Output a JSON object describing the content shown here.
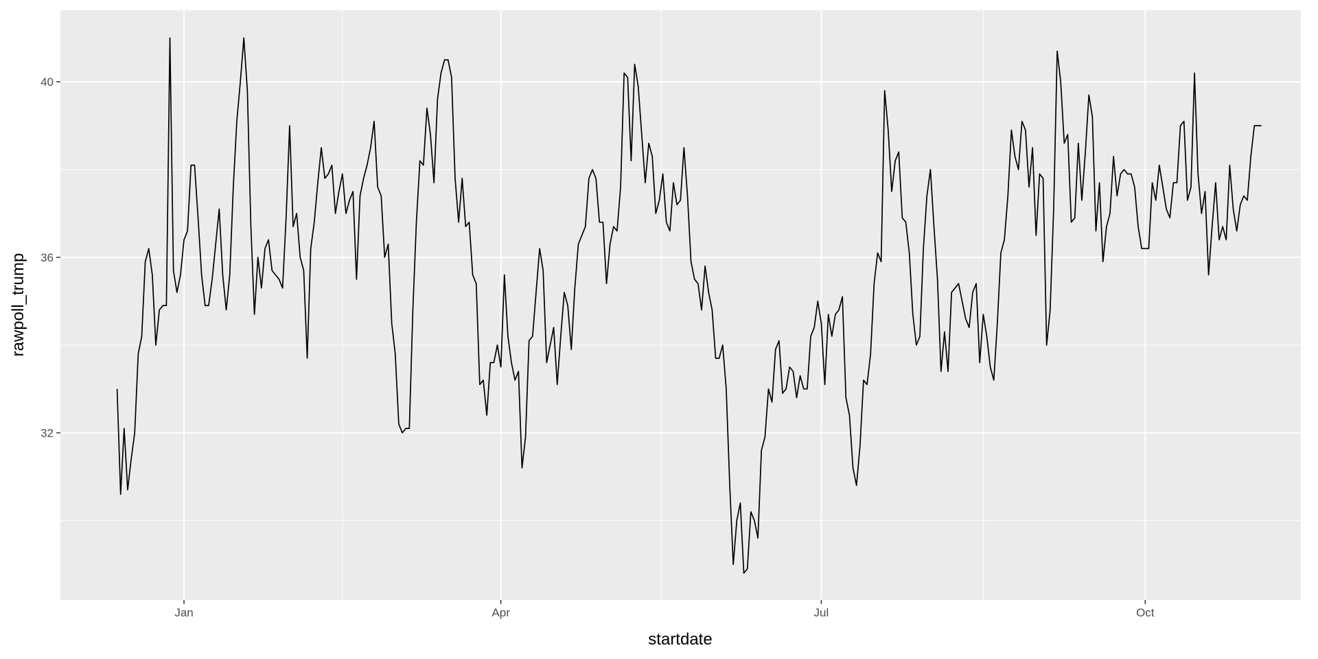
{
  "chart_data": {
    "type": "line",
    "x_label": "startdate",
    "y_label": "rawpoll_trump",
    "color": "#000000",
    "grid": true,
    "x": [
      -19,
      -18,
      -17,
      -16,
      -15,
      -14,
      -13,
      -12,
      -11,
      -10,
      -9,
      -8,
      -7,
      -6,
      -5,
      -4,
      -3,
      -2,
      -1,
      0,
      1,
      2,
      3,
      4,
      5,
      6,
      7,
      8,
      9,
      10,
      11,
      12,
      13,
      14,
      15,
      16,
      17,
      18,
      19,
      20,
      21,
      22,
      23,
      24,
      25,
      26,
      27,
      28,
      29,
      30,
      31,
      32,
      33,
      34,
      35,
      36,
      37,
      38,
      39,
      40,
      41,
      42,
      43,
      44,
      45,
      46,
      47,
      48,
      49,
      50,
      51,
      52,
      53,
      54,
      55,
      56,
      57,
      58,
      59,
      60,
      61,
      62,
      63,
      64,
      65,
      66,
      67,
      68,
      69,
      70,
      71,
      72,
      73,
      74,
      75,
      76,
      77,
      78,
      79,
      80,
      81,
      82,
      83,
      84,
      85,
      86,
      87,
      88,
      89,
      90,
      91,
      92,
      93,
      94,
      95,
      96,
      97,
      98,
      99,
      100,
      101,
      102,
      103,
      104,
      105,
      106,
      107,
      108,
      109,
      110,
      111,
      112,
      113,
      114,
      115,
      116,
      117,
      118,
      119,
      120,
      121,
      122,
      123,
      124,
      125,
      126,
      127,
      128,
      129,
      130,
      131,
      132,
      133,
      134,
      135,
      136,
      137,
      138,
      139,
      140,
      141,
      142,
      143,
      144,
      145,
      146,
      147,
      148,
      149,
      150,
      151,
      152,
      153,
      154,
      155,
      156,
      157,
      158,
      159,
      160,
      161,
      162,
      163,
      164,
      165,
      166,
      167,
      168,
      169,
      170,
      171,
      172,
      173,
      174,
      175,
      176,
      177,
      178,
      179,
      180,
      181,
      182,
      183,
      184,
      185,
      186,
      187,
      188,
      189,
      190,
      191,
      192,
      193,
      194,
      195,
      196,
      197,
      198,
      199,
      200,
      201,
      202,
      203,
      204,
      205,
      206,
      207,
      208,
      209,
      210,
      211,
      212,
      213,
      214,
      215,
      216,
      217,
      218,
      219,
      220,
      221,
      222,
      223,
      224,
      225,
      226,
      227,
      228,
      229,
      230,
      231,
      232,
      233,
      234,
      235,
      236,
      237,
      238,
      239,
      240,
      241,
      242,
      243,
      244,
      245,
      246,
      247,
      248,
      249,
      250,
      251,
      252,
      253,
      254,
      255,
      256,
      257,
      258,
      259,
      260,
      261,
      262,
      263,
      264,
      265,
      266,
      267,
      268,
      269,
      270,
      271,
      272,
      273,
      274,
      275,
      276,
      277,
      278,
      279,
      280,
      281,
      282,
      283,
      284,
      285,
      286,
      287,
      288,
      289,
      290,
      291,
      292,
      293,
      294,
      295,
      296,
      297,
      298,
      299,
      300,
      301,
      302,
      303,
      304,
      305,
      306
    ],
    "values": [
      33.0,
      30.6,
      32.1,
      30.7,
      31.4,
      32.0,
      33.8,
      34.2,
      35.9,
      36.2,
      35.6,
      34.0,
      34.8,
      34.9,
      34.9,
      41.0,
      35.7,
      35.2,
      35.6,
      36.4,
      36.6,
      38.1,
      38.1,
      36.9,
      35.6,
      34.9,
      34.9,
      35.5,
      36.3,
      37.1,
      35.6,
      34.8,
      35.6,
      37.6,
      39.1,
      40.0,
      41.0,
      39.8,
      36.7,
      34.7,
      36.0,
      35.3,
      36.2,
      36.4,
      35.7,
      35.6,
      35.5,
      35.3,
      36.9,
      39.0,
      36.7,
      37.0,
      36.0,
      35.7,
      33.7,
      36.2,
      36.8,
      37.7,
      38.5,
      37.8,
      37.9,
      38.1,
      37.0,
      37.5,
      37.9,
      37.0,
      37.3,
      37.5,
      35.5,
      37.4,
      37.8,
      38.1,
      38.5,
      39.1,
      37.6,
      37.4,
      36.0,
      36.3,
      34.5,
      33.8,
      32.2,
      32.0,
      32.1,
      32.1,
      34.8,
      36.8,
      38.2,
      38.1,
      39.4,
      38.8,
      37.7,
      39.6,
      40.2,
      40.5,
      40.5,
      40.1,
      37.8,
      36.8,
      37.8,
      36.7,
      36.8,
      35.6,
      35.4,
      33.1,
      33.2,
      32.4,
      33.6,
      33.6,
      34.0,
      33.5,
      35.6,
      34.2,
      33.6,
      33.2,
      33.4,
      31.2,
      31.9,
      34.1,
      34.2,
      35.2,
      36.2,
      35.7,
      33.6,
      34.0,
      34.4,
      33.1,
      34.2,
      35.2,
      34.9,
      33.9,
      35.3,
      36.3,
      36.5,
      36.7,
      37.8,
      38.0,
      37.8,
      36.8,
      36.8,
      35.4,
      36.3,
      36.7,
      36.6,
      37.6,
      40.2,
      40.1,
      38.2,
      40.4,
      39.9,
      38.8,
      37.7,
      38.6,
      38.3,
      37.0,
      37.3,
      37.9,
      36.8,
      36.6,
      37.7,
      37.2,
      37.3,
      38.5,
      37.4,
      35.9,
      35.5,
      35.4,
      34.8,
      35.8,
      35.2,
      34.8,
      33.7,
      33.7,
      34.0,
      33.0,
      30.8,
      29.0,
      30.0,
      30.4,
      28.8,
      28.9,
      30.2,
      30.0,
      29.6,
      31.6,
      31.9,
      33.0,
      32.7,
      33.9,
      34.1,
      32.9,
      33.0,
      33.5,
      33.4,
      32.8,
      33.3,
      33.0,
      33.0,
      34.2,
      34.4,
      35.0,
      34.5,
      33.1,
      34.7,
      34.2,
      34.7,
      34.8,
      35.1,
      32.8,
      32.4,
      31.2,
      30.8,
      31.7,
      33.2,
      33.1,
      33.8,
      35.4,
      36.1,
      35.9,
      39.8,
      38.9,
      37.5,
      38.2,
      38.4,
      36.9,
      36.8,
      36.1,
      34.7,
      34.0,
      34.2,
      36.2,
      37.4,
      38.0,
      36.7,
      35.5,
      33.4,
      34.3,
      33.4,
      35.2,
      35.3,
      35.4,
      35.0,
      34.6,
      34.4,
      35.2,
      35.4,
      33.6,
      34.7,
      34.2,
      33.5,
      33.2,
      34.5,
      36.1,
      36.4,
      37.4,
      38.9,
      38.3,
      38.0,
      39.1,
      38.9,
      37.6,
      38.5,
      36.5,
      37.9,
      37.8,
      34.0,
      34.8,
      37.1,
      40.7,
      40.0,
      38.6,
      38.8,
      36.8,
      36.9,
      38.6,
      37.3,
      38.4,
      39.7,
      39.2,
      36.6,
      37.7,
      35.9,
      36.7,
      37.0,
      38.3,
      37.4,
      37.9,
      38.0,
      37.9,
      37.9,
      37.6,
      36.7,
      36.2,
      36.2,
      36.2,
      37.7,
      37.3,
      38.1,
      37.6,
      37.1,
      36.9,
      37.7,
      37.7,
      39.0,
      39.1,
      37.3,
      37.6,
      40.2,
      37.9,
      37.0,
      37.5,
      35.6,
      36.7,
      37.7,
      36.4,
      36.7,
      36.4,
      38.1,
      37.1,
      36.6,
      37.2,
      37.4,
      37.3,
      38.3,
      39.0,
      39.0,
      39.0
    ],
    "xlim": [
      -35.1,
      317.2
    ],
    "xticks": [
      {
        "value": 0,
        "label": "Jan"
      },
      {
        "value": 90,
        "label": "Apr"
      },
      {
        "value": 181,
        "label": "Jul"
      },
      {
        "value": 273,
        "label": "Oct"
      }
    ],
    "ylim": [
      28.19,
      41.63
    ],
    "yticks": [
      32,
      36,
      40
    ]
  }
}
